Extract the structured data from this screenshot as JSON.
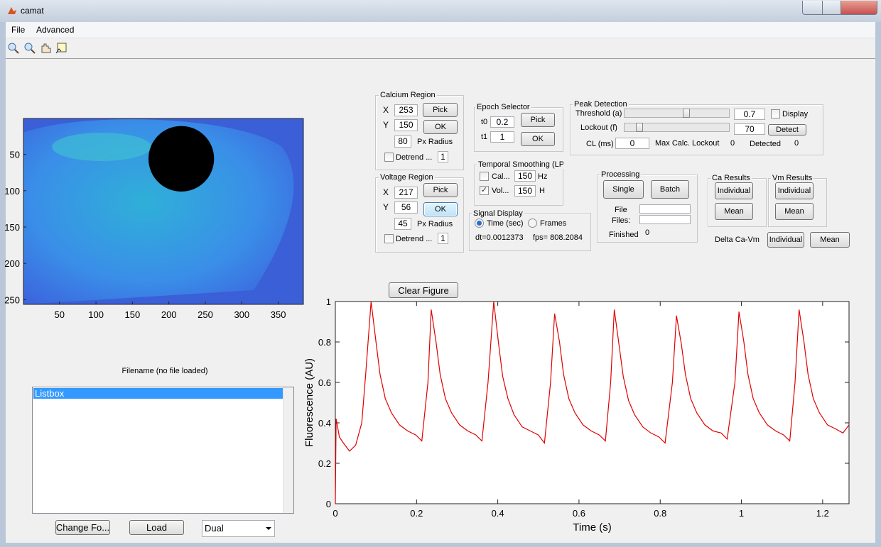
{
  "window": {
    "title": "camat"
  },
  "menu": [
    "File",
    "Advanced"
  ],
  "calcium_region": {
    "title": "Calcium Region",
    "x_label": "X",
    "x": 253,
    "y_label": "Y",
    "y": 150,
    "radius": 80,
    "radius_label": "Px Radius",
    "pick": "Pick",
    "ok": "OK",
    "detrend": "Detrend ...",
    "detrend_value": 1
  },
  "voltage_region": {
    "title": "Voltage Region",
    "x_label": "X",
    "x": 217,
    "y_label": "Y",
    "y": 56,
    "radius": 45,
    "radius_label": "Px Radius",
    "pick": "Pick",
    "ok": "OK",
    "detrend": "Detrend ...",
    "detrend_value": 1
  },
  "epoch_selector": {
    "title": "Epoch Selector",
    "t0_label": "t0",
    "t0": 0.2,
    "t1_label": "t1",
    "t1": 1,
    "pick": "Pick",
    "ok": "OK"
  },
  "temporal_smoothing": {
    "title": "Temporal Smoothing (LPF",
    "cal_label": "Cal...",
    "cal": 150,
    "cal_unit": "Hz",
    "vol_label": "Vol...",
    "vol": 150,
    "vol_unit": "H"
  },
  "signal_display": {
    "title": "Signal Display",
    "time": "Time (sec)",
    "frames": "Frames",
    "dt": "dt=0.0012373",
    "fps": "fps= 808.2084"
  },
  "peak_detection": {
    "title": "Peak Detection",
    "threshold_label": "Threshold (a)",
    "threshold": 0.7,
    "display": "Display",
    "lockout_label": "Lockout (f)",
    "lockout": 70,
    "detect": "Detect",
    "cl_label": "CL (ms)",
    "cl": 0,
    "max_label": "Max Calc. Lockout",
    "max": 0,
    "detected_label": "Detected",
    "detected": 0
  },
  "processing": {
    "title": "Processing",
    "single": "Single",
    "batch": "Batch",
    "file_label": "File",
    "files_label": "Files:",
    "finished_label": "Finished",
    "finished": 0
  },
  "ca_results": {
    "title": "Ca Results",
    "individual": "Individual",
    "mean": "Mean"
  },
  "vm_results": {
    "title": "Vm Results",
    "individual": "Individual",
    "mean": "Mean"
  },
  "delta": {
    "label": "Delta Ca-Vm",
    "individual": "Individual",
    "mean": "Mean"
  },
  "clear_figure": "Clear Figure",
  "filename": "Filename (no file loaded)",
  "listbox": [
    "Listbox"
  ],
  "change_folder": "Change Fo...",
  "load": "Load",
  "mode": "Dual",
  "chart_data": [
    {
      "type": "image",
      "xlim": [
        0.5,
        384.5
      ],
      "ylim": [
        0.5,
        256.5
      ],
      "xticks": [
        50,
        100,
        150,
        200,
        250,
        300,
        350
      ],
      "yticks": [
        50,
        100,
        150,
        200,
        250
      ]
    },
    {
      "type": "line",
      "xlabel": "Time (s)",
      "ylabel": "Fluorescence (AU)",
      "color": "#e00000",
      "xlim": [
        0,
        1.265
      ],
      "ylim": [
        0,
        1
      ],
      "xticks": [
        0,
        0.2,
        0.4,
        0.6,
        0.8,
        1,
        1.2
      ],
      "yticks": [
        0,
        0.2,
        0.4,
        0.6,
        0.8,
        1
      ],
      "x": [
        0,
        0.002,
        0.01,
        0.02,
        0.035,
        0.05,
        0.065,
        0.075,
        0.088,
        0.1,
        0.11,
        0.123,
        0.138,
        0.158,
        0.178,
        0.198,
        0.213,
        0.228,
        0.236,
        0.248,
        0.258,
        0.271,
        0.286,
        0.306,
        0.326,
        0.346,
        0.361,
        0.376,
        0.39,
        0.402,
        0.412,
        0.425,
        0.44,
        0.46,
        0.48,
        0.5,
        0.515,
        0.53,
        0.54,
        0.552,
        0.562,
        0.575,
        0.59,
        0.61,
        0.63,
        0.65,
        0.665,
        0.678,
        0.687,
        0.699,
        0.709,
        0.722,
        0.737,
        0.757,
        0.777,
        0.797,
        0.812,
        0.83,
        0.84,
        0.852,
        0.862,
        0.875,
        0.89,
        0.91,
        0.93,
        0.95,
        0.965,
        0.984,
        0.994,
        1.006,
        1.016,
        1.029,
        1.044,
        1.064,
        1.084,
        1.104,
        1.119,
        1.132,
        1.142,
        1.154,
        1.164,
        1.177,
        1.192,
        1.212,
        1.232,
        1.25,
        1.265
      ],
      "values": [
        0,
        0.42,
        0.33,
        0.3,
        0.26,
        0.29,
        0.4,
        0.65,
        1,
        0.8,
        0.64,
        0.52,
        0.45,
        0.39,
        0.36,
        0.34,
        0.31,
        0.6,
        0.96,
        0.8,
        0.64,
        0.52,
        0.45,
        0.39,
        0.36,
        0.34,
        0.31,
        0.6,
        1,
        0.79,
        0.63,
        0.52,
        0.44,
        0.38,
        0.36,
        0.34,
        0.3,
        0.6,
        0.94,
        0.8,
        0.64,
        0.52,
        0.45,
        0.39,
        0.36,
        0.34,
        0.31,
        0.6,
        0.96,
        0.78,
        0.63,
        0.51,
        0.44,
        0.38,
        0.35,
        0.33,
        0.3,
        0.6,
        0.93,
        0.79,
        0.64,
        0.52,
        0.45,
        0.39,
        0.36,
        0.35,
        0.32,
        0.6,
        0.95,
        0.8,
        0.64,
        0.52,
        0.45,
        0.39,
        0.36,
        0.34,
        0.31,
        0.6,
        0.96,
        0.8,
        0.64,
        0.52,
        0.45,
        0.39,
        0.37,
        0.35,
        0.39
      ]
    }
  ]
}
